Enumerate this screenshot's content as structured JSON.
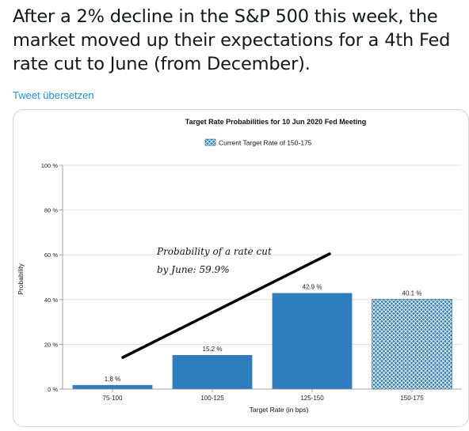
{
  "tweet": {
    "text": "After a 2% decline in the S&P 500 this week, the market moved up their expectations for a 4th Fed rate cut to June (from December).",
    "translate_label": "Tweet übersetzen"
  },
  "chart_data": {
    "type": "bar",
    "title": "Target Rate Probabilities for 10 Jun 2020 Fed Meeting",
    "legend_label": "Current Target Rate of 150-175",
    "legend_placement": "top-center",
    "xlabel": "Target Rate (in bps)",
    "ylabel": "Probability",
    "categories": [
      "75-100",
      "100-125",
      "125-150",
      "150-175"
    ],
    "values": [
      1.8,
      15.2,
      42.9,
      40.1
    ],
    "value_labels": [
      "1.8 %",
      "15.2 %",
      "42.9 %",
      "40.1 %"
    ],
    "current_category": "150-175",
    "ylim": [
      0,
      100
    ],
    "yticks": [
      0,
      20,
      40,
      60,
      80,
      100
    ],
    "ytick_labels": [
      "0 %",
      "20 %",
      "40 %",
      "60 %",
      "80 %",
      "100 %"
    ],
    "grid": true,
    "colors": {
      "bar": "#2e7dbf",
      "bar_dark": "#1f5f96",
      "grid": "#d9d9d9",
      "annotation_line": "#000000"
    },
    "annotation": {
      "line1": "Probability of a rate cut",
      "line2": "by June: 59.9%"
    }
  }
}
